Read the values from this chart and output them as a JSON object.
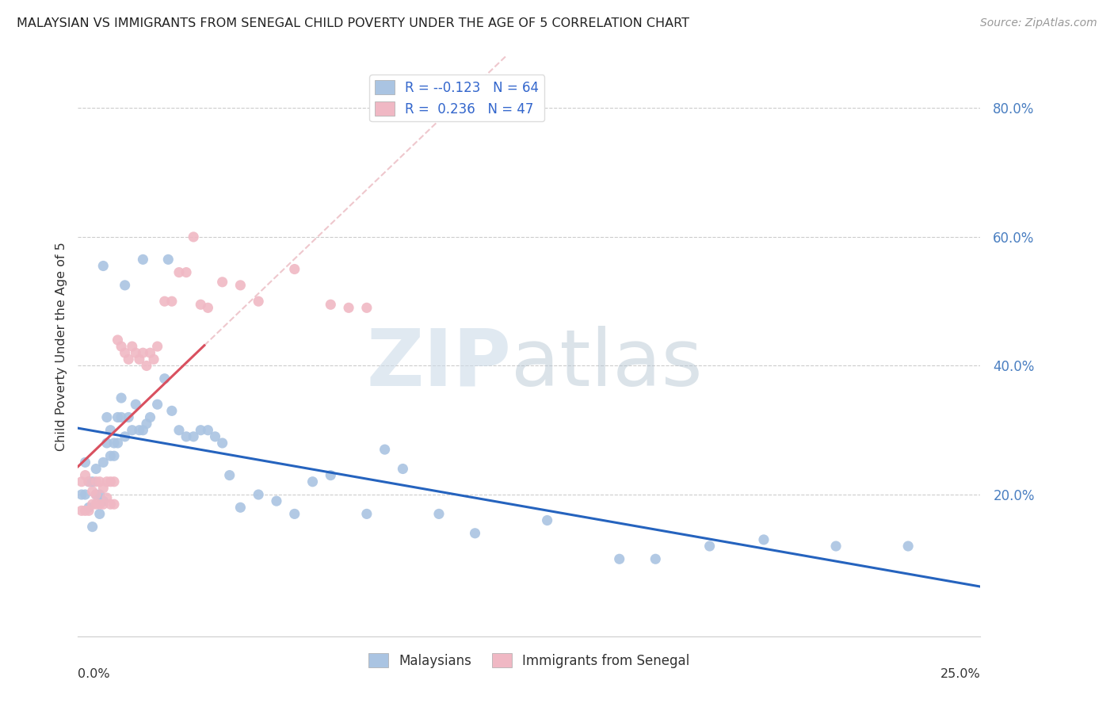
{
  "title": "MALAYSIAN VS IMMIGRANTS FROM SENEGAL CHILD POVERTY UNDER THE AGE OF 5 CORRELATION CHART",
  "source": "Source: ZipAtlas.com",
  "ylabel": "Child Poverty Under the Age of 5",
  "ytick_values": [
    0.2,
    0.4,
    0.6,
    0.8
  ],
  "ytick_labels": [
    "20.0%",
    "40.0%",
    "60.0%",
    "80.0%"
  ],
  "xlim": [
    0.0,
    0.25
  ],
  "ylim": [
    -0.02,
    0.88
  ],
  "legend_blue_r": "-0.123",
  "legend_blue_n": "64",
  "legend_pink_r": "0.236",
  "legend_pink_n": "47",
  "legend_label_blue": "Malaysians",
  "legend_label_pink": "Immigrants from Senegal",
  "blue_color": "#aac4e2",
  "pink_color": "#f0b8c4",
  "blue_line_color": "#2563be",
  "pink_line_color": "#d9505f",
  "pink_dash_color": "#e8b0b8",
  "watermark_zip": "ZIP",
  "watermark_atlas": "atlas",
  "blue_x": [
    0.001,
    0.002,
    0.002,
    0.003,
    0.003,
    0.004,
    0.004,
    0.005,
    0.005,
    0.006,
    0.006,
    0.007,
    0.007,
    0.008,
    0.008,
    0.009,
    0.009,
    0.01,
    0.01,
    0.011,
    0.011,
    0.012,
    0.012,
    0.013,
    0.014,
    0.015,
    0.016,
    0.017,
    0.018,
    0.019,
    0.02,
    0.022,
    0.024,
    0.026,
    0.028,
    0.03,
    0.032,
    0.034,
    0.036,
    0.038,
    0.04,
    0.042,
    0.045,
    0.05,
    0.055,
    0.06,
    0.065,
    0.07,
    0.08,
    0.085,
    0.09,
    0.1,
    0.11,
    0.13,
    0.15,
    0.16,
    0.175,
    0.19,
    0.21,
    0.23,
    0.007,
    0.013,
    0.018,
    0.025
  ],
  "blue_y": [
    0.2,
    0.2,
    0.25,
    0.22,
    0.18,
    0.22,
    0.15,
    0.2,
    0.24,
    0.2,
    0.17,
    0.25,
    0.19,
    0.32,
    0.28,
    0.3,
    0.26,
    0.28,
    0.26,
    0.28,
    0.32,
    0.32,
    0.35,
    0.29,
    0.32,
    0.3,
    0.34,
    0.3,
    0.3,
    0.31,
    0.32,
    0.34,
    0.38,
    0.33,
    0.3,
    0.29,
    0.29,
    0.3,
    0.3,
    0.29,
    0.28,
    0.23,
    0.18,
    0.2,
    0.19,
    0.17,
    0.22,
    0.23,
    0.17,
    0.27,
    0.24,
    0.17,
    0.14,
    0.16,
    0.1,
    0.1,
    0.12,
    0.13,
    0.12,
    0.12,
    0.555,
    0.525,
    0.565,
    0.565
  ],
  "pink_x": [
    0.001,
    0.001,
    0.002,
    0.002,
    0.003,
    0.003,
    0.004,
    0.004,
    0.005,
    0.005,
    0.005,
    0.006,
    0.006,
    0.007,
    0.007,
    0.008,
    0.008,
    0.009,
    0.009,
    0.01,
    0.01,
    0.011,
    0.012,
    0.013,
    0.014,
    0.015,
    0.016,
    0.017,
    0.018,
    0.019,
    0.02,
    0.021,
    0.022,
    0.024,
    0.026,
    0.028,
    0.03,
    0.032,
    0.034,
    0.036,
    0.04,
    0.045,
    0.05,
    0.06,
    0.07,
    0.075,
    0.08
  ],
  "pink_y": [
    0.175,
    0.22,
    0.175,
    0.23,
    0.175,
    0.22,
    0.185,
    0.205,
    0.185,
    0.2,
    0.22,
    0.185,
    0.22,
    0.185,
    0.21,
    0.195,
    0.22,
    0.185,
    0.22,
    0.22,
    0.185,
    0.44,
    0.43,
    0.42,
    0.41,
    0.43,
    0.42,
    0.41,
    0.42,
    0.4,
    0.42,
    0.41,
    0.43,
    0.5,
    0.5,
    0.545,
    0.545,
    0.6,
    0.495,
    0.49,
    0.53,
    0.525,
    0.5,
    0.55,
    0.495,
    0.49,
    0.49
  ]
}
